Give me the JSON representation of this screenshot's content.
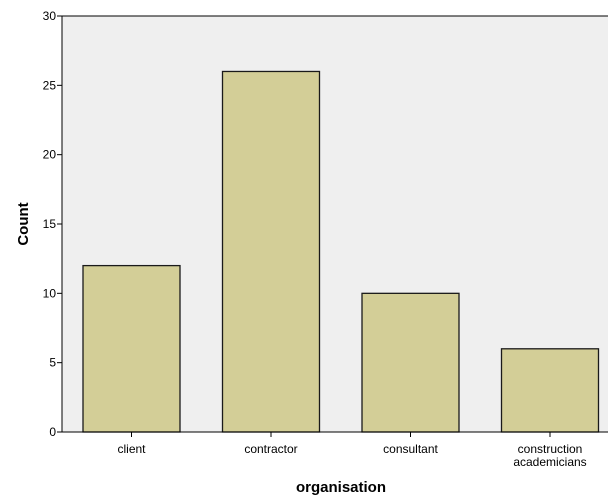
{
  "chart_data": {
    "type": "bar",
    "title": "",
    "xlabel": "organisation",
    "ylabel": "Count",
    "categories": [
      [
        "client"
      ],
      [
        "contractor"
      ],
      [
        "consultant"
      ],
      [
        "construction",
        "academicians"
      ]
    ],
    "values": [
      12,
      26,
      10,
      6
    ],
    "ylim": [
      0,
      30
    ],
    "yticks": [
      "0",
      "5",
      "10",
      "15",
      "20",
      "25",
      "30"
    ],
    "grid": false,
    "colors": {
      "plot_background": "#efefef",
      "bar_fill": "#d3ce97",
      "bar_stroke": "#1a1a1a",
      "axis": "#000000"
    }
  }
}
